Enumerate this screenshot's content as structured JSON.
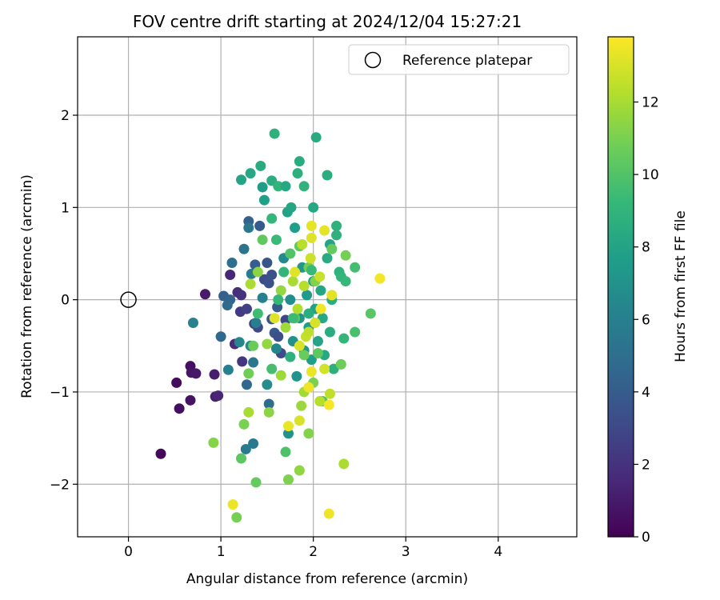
{
  "chart_data": {
    "type": "scatter",
    "title": "FOV centre drift starting at 2024/12/04 15:27:21",
    "xlabel": "Angular distance from reference (arcmin)",
    "ylabel": "Rotation from reference (arcmin)",
    "xlim": [
      -0.55,
      4.85
    ],
    "ylim": [
      -2.57,
      2.85
    ],
    "xticks": [
      0,
      1,
      2,
      3,
      4
    ],
    "xtick_labels": [
      "0",
      "1",
      "2",
      "3",
      "4"
    ],
    "yticks": [
      -2,
      -1,
      0,
      1,
      2
    ],
    "ytick_labels": [
      "−2",
      "−1",
      "0",
      "1",
      "2"
    ],
    "grid": true,
    "legend": {
      "location": "top-right",
      "entries": [
        {
          "label": "Reference platepar",
          "marker": "open-circle"
        }
      ]
    },
    "reference_point": {
      "name": "Reference platepar",
      "x": 0,
      "y": 0
    },
    "colorbar": {
      "label": "Hours from first FF file",
      "colormap": "viridis",
      "range": [
        0,
        13.8
      ],
      "ticks": [
        0,
        2,
        4,
        6,
        8,
        10,
        12
      ],
      "tick_labels": [
        "0",
        "2",
        "4",
        "6",
        "8",
        "10",
        "12"
      ]
    },
    "points": [
      {
        "x": 0.35,
        "y": -1.67,
        "c": 0.3
      },
      {
        "x": 0.52,
        "y": -0.9,
        "c": 0.4
      },
      {
        "x": 0.55,
        "y": -1.18,
        "c": 0.5
      },
      {
        "x": 0.67,
        "y": -0.72,
        "c": 0.6
      },
      {
        "x": 0.67,
        "y": -1.09,
        "c": 0.7
      },
      {
        "x": 0.68,
        "y": -0.79,
        "c": 0.8
      },
      {
        "x": 0.73,
        "y": -0.8,
        "c": 0.9
      },
      {
        "x": 0.83,
        "y": 0.06,
        "c": 1.0
      },
      {
        "x": 0.93,
        "y": -0.81,
        "c": 1.1
      },
      {
        "x": 0.94,
        "y": -1.05,
        "c": 1.2
      },
      {
        "x": 0.97,
        "y": -1.04,
        "c": 1.4
      },
      {
        "x": 1.1,
        "y": 0.27,
        "c": 1.5
      },
      {
        "x": 1.15,
        "y": -0.48,
        "c": 1.7
      },
      {
        "x": 1.18,
        "y": 0.08,
        "c": 1.9
      },
      {
        "x": 1.22,
        "y": 0.05,
        "c": 2.0
      },
      {
        "x": 1.23,
        "y": -0.67,
        "c": 2.2
      },
      {
        "x": 1.21,
        "y": -0.13,
        "c": 2.4
      },
      {
        "x": 1.28,
        "y": -0.1,
        "c": 2.6
      },
      {
        "x": 1.36,
        "y": -0.26,
        "c": 2.8
      },
      {
        "x": 1.4,
        "y": -0.3,
        "c": 3.0
      },
      {
        "x": 1.47,
        "y": 0.22,
        "c": 3.2
      },
      {
        "x": 1.52,
        "y": 0.18,
        "c": 3.4
      },
      {
        "x": 1.55,
        "y": -0.21,
        "c": 3.6
      },
      {
        "x": 1.58,
        "y": -0.36,
        "c": 3.8
      },
      {
        "x": 1.61,
        "y": -0.08,
        "c": 4.0
      },
      {
        "x": 1.03,
        "y": 0.04,
        "c": 4.2
      },
      {
        "x": 1.1,
        "y": 0.0,
        "c": 4.4
      },
      {
        "x": 1.0,
        "y": -0.4,
        "c": 4.6
      },
      {
        "x": 1.07,
        "y": -0.06,
        "c": 4.8
      },
      {
        "x": 1.3,
        "y": 0.85,
        "c": 4.3
      },
      {
        "x": 1.37,
        "y": 0.38,
        "c": 4.1
      },
      {
        "x": 1.42,
        "y": 0.8,
        "c": 3.9
      },
      {
        "x": 1.5,
        "y": 0.4,
        "c": 3.7
      },
      {
        "x": 1.55,
        "y": 0.27,
        "c": 3.5
      },
      {
        "x": 1.62,
        "y": -0.4,
        "c": 3.3
      },
      {
        "x": 1.65,
        "y": -0.58,
        "c": 3.1
      },
      {
        "x": 1.7,
        "y": -0.22,
        "c": 2.9
      },
      {
        "x": 1.28,
        "y": -0.92,
        "c": 4.6
      },
      {
        "x": 1.52,
        "y": -1.13,
        "c": 4.9
      },
      {
        "x": 1.12,
        "y": 0.4,
        "c": 5.1
      },
      {
        "x": 1.25,
        "y": 0.55,
        "c": 5.3
      },
      {
        "x": 1.3,
        "y": 0.78,
        "c": 5.5
      },
      {
        "x": 1.33,
        "y": 0.28,
        "c": 5.7
      },
      {
        "x": 1.38,
        "y": -0.25,
        "c": 5.9
      },
      {
        "x": 1.45,
        "y": 0.02,
        "c": 6.1
      },
      {
        "x": 1.6,
        "y": -0.53,
        "c": 6.3
      },
      {
        "x": 1.68,
        "y": 0.45,
        "c": 6.5
      },
      {
        "x": 1.75,
        "y": 0.0,
        "c": 6.7
      },
      {
        "x": 1.78,
        "y": -0.45,
        "c": 6.9
      },
      {
        "x": 0.7,
        "y": -0.25,
        "c": 6.2
      },
      {
        "x": 1.08,
        "y": -0.76,
        "c": 6.0
      },
      {
        "x": 1.27,
        "y": -1.62,
        "c": 5.8
      },
      {
        "x": 1.35,
        "y": -1.56,
        "c": 5.6
      },
      {
        "x": 1.35,
        "y": -0.68,
        "c": 5.4
      },
      {
        "x": 1.2,
        "y": -0.46,
        "c": 6.4
      },
      {
        "x": 1.32,
        "y": -0.5,
        "c": 6.6
      },
      {
        "x": 1.5,
        "y": -0.92,
        "c": 6.8
      },
      {
        "x": 1.73,
        "y": -1.45,
        "c": 7.0
      },
      {
        "x": 1.82,
        "y": -0.83,
        "c": 7.1
      },
      {
        "x": 1.85,
        "y": -0.2,
        "c": 7.2
      },
      {
        "x": 1.88,
        "y": 0.35,
        "c": 7.3
      },
      {
        "x": 1.9,
        "y": -0.55,
        "c": 7.4
      },
      {
        "x": 1.93,
        "y": 0.05,
        "c": 7.5
      },
      {
        "x": 1.95,
        "y": -0.3,
        "c": 7.6
      },
      {
        "x": 1.98,
        "y": -0.65,
        "c": 7.7
      },
      {
        "x": 2.0,
        "y": 0.2,
        "c": 7.8
      },
      {
        "x": 2.02,
        "y": -0.1,
        "c": 7.9
      },
      {
        "x": 2.05,
        "y": -0.45,
        "c": 8.0
      },
      {
        "x": 2.08,
        "y": 0.1,
        "c": 8.1
      },
      {
        "x": 2.1,
        "y": -0.2,
        "c": 8.2
      },
      {
        "x": 2.12,
        "y": -0.6,
        "c": 8.3
      },
      {
        "x": 2.15,
        "y": 0.45,
        "c": 8.4
      },
      {
        "x": 2.18,
        "y": -0.35,
        "c": 8.5
      },
      {
        "x": 2.2,
        "y": 0.0,
        "c": 8.6
      },
      {
        "x": 2.22,
        "y": -0.75,
        "c": 8.7
      },
      {
        "x": 2.25,
        "y": 0.8,
        "c": 8.8
      },
      {
        "x": 2.28,
        "y": 0.3,
        "c": 8.9
      },
      {
        "x": 2.3,
        "y": 0.25,
        "c": 9.0
      },
      {
        "x": 2.33,
        "y": -0.42,
        "c": 9.1
      },
      {
        "x": 2.35,
        "y": 0.2,
        "c": 9.2
      },
      {
        "x": 1.22,
        "y": 1.3,
        "c": 8.0
      },
      {
        "x": 1.32,
        "y": 1.37,
        "c": 8.2
      },
      {
        "x": 1.43,
        "y": 1.45,
        "c": 8.4
      },
      {
        "x": 1.45,
        "y": 1.22,
        "c": 7.6
      },
      {
        "x": 1.47,
        "y": 1.08,
        "c": 7.8
      },
      {
        "x": 1.55,
        "y": 1.29,
        "c": 8.6
      },
      {
        "x": 1.58,
        "y": 1.8,
        "c": 8.8
      },
      {
        "x": 1.62,
        "y": 1.23,
        "c": 9.0
      },
      {
        "x": 1.7,
        "y": 1.23,
        "c": 8.3
      },
      {
        "x": 1.72,
        "y": 0.95,
        "c": 7.9
      },
      {
        "x": 1.76,
        "y": 1.0,
        "c": 8.1
      },
      {
        "x": 1.8,
        "y": 0.78,
        "c": 7.7
      },
      {
        "x": 1.85,
        "y": 1.5,
        "c": 8.5
      },
      {
        "x": 1.83,
        "y": 1.37,
        "c": 8.7
      },
      {
        "x": 1.9,
        "y": 1.23,
        "c": 8.9
      },
      {
        "x": 2.0,
        "y": 1.0,
        "c": 8.2
      },
      {
        "x": 2.03,
        "y": 1.76,
        "c": 8.4
      },
      {
        "x": 2.15,
        "y": 1.35,
        "c": 8.6
      },
      {
        "x": 2.18,
        "y": 0.6,
        "c": 8.0
      },
      {
        "x": 2.25,
        "y": 0.7,
        "c": 8.8
      },
      {
        "x": 1.55,
        "y": 0.88,
        "c": 9.1
      },
      {
        "x": 1.6,
        "y": 0.65,
        "c": 9.3
      },
      {
        "x": 1.4,
        "y": -0.15,
        "c": 9.5
      },
      {
        "x": 1.55,
        "y": -0.75,
        "c": 9.7
      },
      {
        "x": 1.7,
        "y": -1.65,
        "c": 9.9
      },
      {
        "x": 1.75,
        "y": 0.5,
        "c": 10.0
      },
      {
        "x": 1.8,
        "y": -0.2,
        "c": 10.2
      },
      {
        "x": 1.85,
        "y": 0.58,
        "c": 10.4
      },
      {
        "x": 1.9,
        "y": -0.6,
        "c": 10.6
      },
      {
        "x": 1.95,
        "y": 0.35,
        "c": 10.8
      },
      {
        "x": 2.0,
        "y": -0.9,
        "c": 11.0
      },
      {
        "x": 2.02,
        "y": 0.2,
        "c": 11.2
      },
      {
        "x": 2.05,
        "y": -0.58,
        "c": 10.3
      },
      {
        "x": 2.1,
        "y": -1.1,
        "c": 10.1
      },
      {
        "x": 2.2,
        "y": 0.55,
        "c": 10.5
      },
      {
        "x": 2.3,
        "y": -0.7,
        "c": 10.7
      },
      {
        "x": 2.35,
        "y": 0.48,
        "c": 10.9
      },
      {
        "x": 2.45,
        "y": -0.35,
        "c": 9.8
      },
      {
        "x": 2.45,
        "y": 0.35,
        "c": 9.6
      },
      {
        "x": 2.62,
        "y": -0.15,
        "c": 10.2
      },
      {
        "x": 1.45,
        "y": 0.65,
        "c": 10.4
      },
      {
        "x": 1.35,
        "y": -0.5,
        "c": 10.6
      },
      {
        "x": 1.3,
        "y": -0.8,
        "c": 10.8
      },
      {
        "x": 1.25,
        "y": -1.35,
        "c": 11.0
      },
      {
        "x": 1.38,
        "y": -1.98,
        "c": 10.5
      },
      {
        "x": 1.22,
        "y": -1.72,
        "c": 10.3
      },
      {
        "x": 1.17,
        "y": -2.36,
        "c": 10.9
      },
      {
        "x": 0.92,
        "y": -1.55,
        "c": 11.3
      },
      {
        "x": 1.3,
        "y": -1.22,
        "c": 12.0
      },
      {
        "x": 1.52,
        "y": -1.22,
        "c": 11.4
      },
      {
        "x": 1.73,
        "y": -1.95,
        "c": 11.1
      },
      {
        "x": 1.85,
        "y": -1.85,
        "c": 11.5
      },
      {
        "x": 1.87,
        "y": -1.15,
        "c": 11.7
      },
      {
        "x": 1.9,
        "y": -1.0,
        "c": 11.9
      },
      {
        "x": 1.95,
        "y": -1.45,
        "c": 11.2
      },
      {
        "x": 2.07,
        "y": -1.1,
        "c": 12.3
      },
      {
        "x": 2.18,
        "y": -1.02,
        "c": 12.5
      },
      {
        "x": 2.33,
        "y": -1.78,
        "c": 12.1
      },
      {
        "x": 1.65,
        "y": 0.1,
        "c": 11.6
      },
      {
        "x": 1.7,
        "y": -0.3,
        "c": 11.8
      },
      {
        "x": 1.78,
        "y": 0.2,
        "c": 12.0
      },
      {
        "x": 1.83,
        "y": -0.1,
        "c": 12.2
      },
      {
        "x": 1.88,
        "y": 0.6,
        "c": 12.4
      },
      {
        "x": 1.92,
        "y": -0.4,
        "c": 12.6
      },
      {
        "x": 1.97,
        "y": 0.45,
        "c": 12.8
      },
      {
        "x": 2.02,
        "y": -0.25,
        "c": 13.0
      },
      {
        "x": 2.07,
        "y": 0.25,
        "c": 12.7
      },
      {
        "x": 2.12,
        "y": -0.75,
        "c": 12.9
      },
      {
        "x": 1.4,
        "y": 0.3,
        "c": 11.4
      },
      {
        "x": 1.5,
        "y": -0.48,
        "c": 11.6
      },
      {
        "x": 1.32,
        "y": 0.17,
        "c": 12.1
      },
      {
        "x": 1.58,
        "y": -0.2,
        "c": 13.2
      },
      {
        "x": 1.73,
        "y": -1.37,
        "c": 13.4
      },
      {
        "x": 1.85,
        "y": -1.31,
        "c": 13.0
      },
      {
        "x": 1.95,
        "y": -0.95,
        "c": 13.5
      },
      {
        "x": 1.98,
        "y": 0.8,
        "c": 13.3
      },
      {
        "x": 1.98,
        "y": 0.67,
        "c": 13.1
      },
      {
        "x": 1.98,
        "y": -0.78,
        "c": 13.4
      },
      {
        "x": 1.8,
        "y": 0.3,
        "c": 13.2
      },
      {
        "x": 1.85,
        "y": -0.5,
        "c": 13.0
      },
      {
        "x": 2.08,
        "y": -0.1,
        "c": 13.6
      },
      {
        "x": 2.12,
        "y": 0.75,
        "c": 13.3
      },
      {
        "x": 2.17,
        "y": -2.32,
        "c": 13.5
      },
      {
        "x": 2.17,
        "y": -1.14,
        "c": 13.7
      },
      {
        "x": 2.72,
        "y": 0.23,
        "c": 13.6
      },
      {
        "x": 1.13,
        "y": -2.22,
        "c": 13.4
      },
      {
        "x": 2.2,
        "y": 0.05,
        "c": 13.2
      },
      {
        "x": 1.95,
        "y": -0.35,
        "c": 12.5
      },
      {
        "x": 1.9,
        "y": 0.15,
        "c": 12.3
      },
      {
        "x": 1.65,
        "y": -0.82,
        "c": 11.8
      },
      {
        "x": 1.78,
        "y": -0.2,
        "c": 9.4
      },
      {
        "x": 1.62,
        "y": 0.0,
        "c": 9.2
      },
      {
        "x": 1.68,
        "y": 0.3,
        "c": 9.0
      },
      {
        "x": 1.75,
        "y": -0.62,
        "c": 8.8
      },
      {
        "x": 1.95,
        "y": -0.15,
        "c": 8.6
      },
      {
        "x": 1.98,
        "y": 0.32,
        "c": 9.3
      }
    ]
  }
}
